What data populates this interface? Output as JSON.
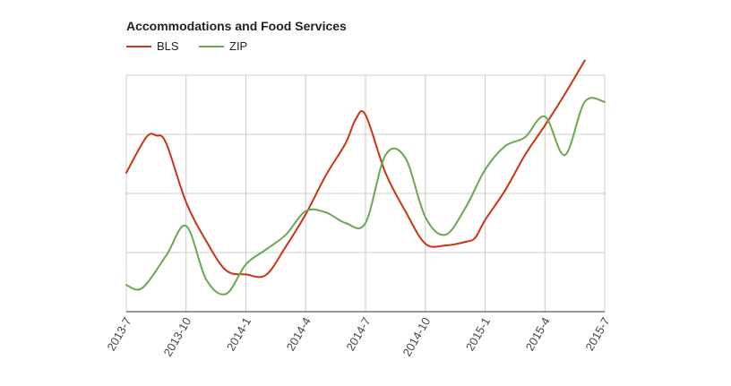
{
  "chart_data": {
    "type": "line",
    "title": "Accommodations and Food Services",
    "xlabel": "",
    "ylabel": "",
    "x_ticks": [
      "2013-7",
      "2013-10",
      "2014-1",
      "2014-4",
      "2014-7",
      "2014-10",
      "2015-1",
      "2015-4",
      "2015-7"
    ],
    "x_range": [
      0,
      24
    ],
    "ylim": [
      0,
      4
    ],
    "y_gridlines": [
      1,
      2,
      3,
      4
    ],
    "legend_position": "top-left",
    "series": [
      {
        "name": "BLS",
        "color": "#cc3311",
        "x": [
          0,
          1,
          1.5,
          2,
          3,
          4,
          5,
          6,
          7,
          8,
          9,
          10,
          11,
          11.5,
          12,
          13,
          14,
          15,
          16,
          17,
          17.5,
          18,
          19,
          20,
          21,
          22,
          23
        ],
        "y": [
          2.35,
          2.95,
          2.98,
          2.85,
          1.85,
          1.2,
          0.7,
          0.63,
          0.62,
          1.1,
          1.65,
          2.3,
          2.85,
          3.25,
          3.33,
          2.35,
          1.7,
          1.15,
          1.12,
          1.18,
          1.25,
          1.55,
          2.05,
          2.65,
          3.15,
          3.68,
          4.25
        ]
      },
      {
        "name": "ZIP",
        "color": "#6aa84f",
        "x": [
          0,
          0.8,
          2,
          3,
          4,
          5,
          6,
          7,
          8,
          9,
          10,
          11,
          12,
          13,
          14,
          15,
          16,
          17,
          18,
          19,
          20,
          21,
          22,
          23,
          24
        ],
        "y": [
          0.45,
          0.4,
          0.95,
          1.45,
          0.55,
          0.3,
          0.8,
          1.05,
          1.3,
          1.7,
          1.68,
          1.5,
          1.5,
          2.65,
          2.6,
          1.6,
          1.3,
          1.75,
          2.4,
          2.8,
          2.95,
          3.3,
          2.65,
          3.55,
          3.55
        ]
      }
    ]
  }
}
